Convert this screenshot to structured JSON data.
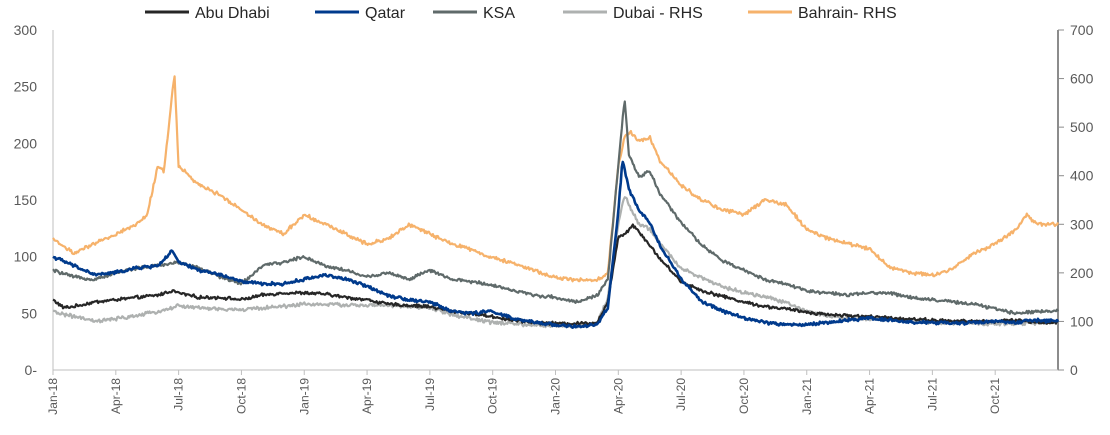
{
  "chart_data": {
    "type": "line",
    "title": "",
    "xlabel": "",
    "ylabel": "",
    "ylim": [
      0,
      300
    ],
    "y2lim": [
      0,
      700
    ],
    "yticks": [
      0,
      50,
      100,
      150,
      200,
      250,
      300
    ],
    "yticks_label_suffix": {
      "0": "-"
    },
    "y2ticks": [
      0,
      100,
      200,
      300,
      400,
      500,
      600,
      700
    ],
    "x_range_months": [
      0,
      48
    ],
    "xtick_labels": [
      "Jan-18",
      "Apr-18",
      "Jul-18",
      "Oct-18",
      "Jan-19",
      "Apr-19",
      "Jul-19",
      "Oct-19",
      "Jan-20",
      "Apr-20",
      "Jul-20",
      "Oct-20",
      "Jan-21",
      "Apr-21",
      "Jul-21",
      "Oct-21"
    ],
    "legend_position": "top",
    "series": [
      {
        "name": "Abu Dhabi",
        "axis": "left",
        "color": "#262626",
        "points": [
          [
            0,
            62
          ],
          [
            0.5,
            55
          ],
          [
            1,
            56
          ],
          [
            2,
            60
          ],
          [
            3,
            62
          ],
          [
            4,
            64
          ],
          [
            5,
            66
          ],
          [
            5.7,
            70
          ],
          [
            6,
            68
          ],
          [
            7,
            64
          ],
          [
            8,
            64
          ],
          [
            9,
            62
          ],
          [
            10,
            66
          ],
          [
            11,
            68
          ],
          [
            12,
            68
          ],
          [
            13,
            67
          ],
          [
            14,
            64
          ],
          [
            15,
            62
          ],
          [
            16,
            58
          ],
          [
            17,
            57
          ],
          [
            18,
            56
          ],
          [
            19,
            52
          ],
          [
            20,
            50
          ],
          [
            21,
            47
          ],
          [
            22,
            44
          ],
          [
            23,
            42
          ],
          [
            24,
            41
          ],
          [
            25,
            41
          ],
          [
            26,
            42
          ],
          [
            26.5,
            60
          ],
          [
            27,
            118
          ],
          [
            27.3,
            120
          ],
          [
            27.7,
            128
          ],
          [
            28,
            122
          ],
          [
            28.5,
            110
          ],
          [
            29,
            98
          ],
          [
            30,
            78
          ],
          [
            31,
            70
          ],
          [
            32,
            65
          ],
          [
            33,
            60
          ],
          [
            34,
            56
          ],
          [
            35,
            54
          ],
          [
            36,
            51
          ],
          [
            37,
            49
          ],
          [
            38,
            48
          ],
          [
            39,
            47
          ],
          [
            40,
            46
          ],
          [
            41,
            45
          ],
          [
            42,
            44
          ],
          [
            43,
            43
          ],
          [
            44,
            43
          ],
          [
            45,
            43
          ],
          [
            46,
            44
          ],
          [
            47,
            42
          ],
          [
            48,
            42
          ]
        ]
      },
      {
        "name": "Qatar",
        "axis": "left",
        "color": "#003a8c",
        "points": [
          [
            0,
            100
          ],
          [
            1,
            92
          ],
          [
            2,
            84
          ],
          [
            3,
            86
          ],
          [
            4,
            90
          ],
          [
            5,
            92
          ],
          [
            5.7,
            105
          ],
          [
            6,
            95
          ],
          [
            7,
            88
          ],
          [
            8,
            84
          ],
          [
            9,
            78
          ],
          [
            10,
            76
          ],
          [
            11,
            76
          ],
          [
            12,
            80
          ],
          [
            13,
            84
          ],
          [
            14,
            80
          ],
          [
            15,
            74
          ],
          [
            16,
            66
          ],
          [
            17,
            62
          ],
          [
            18,
            60
          ],
          [
            18.5,
            56
          ],
          [
            19,
            52
          ],
          [
            20,
            50
          ],
          [
            21,
            52
          ],
          [
            22,
            45
          ],
          [
            23,
            42
          ],
          [
            24,
            40
          ],
          [
            25,
            38
          ],
          [
            26,
            40
          ],
          [
            26.5,
            55
          ],
          [
            27,
            140
          ],
          [
            27.2,
            185
          ],
          [
            27.5,
            160
          ],
          [
            28,
            140
          ],
          [
            28.5,
            130
          ],
          [
            29,
            110
          ],
          [
            30,
            80
          ],
          [
            31,
            60
          ],
          [
            32,
            52
          ],
          [
            33,
            46
          ],
          [
            34,
            42
          ],
          [
            35,
            40
          ],
          [
            36,
            40
          ],
          [
            37,
            42
          ],
          [
            38,
            44
          ],
          [
            39,
            46
          ],
          [
            40,
            44
          ],
          [
            41,
            42
          ],
          [
            42,
            42
          ],
          [
            43,
            41
          ],
          [
            44,
            42
          ],
          [
            45,
            43
          ],
          [
            46,
            42
          ],
          [
            47,
            44
          ],
          [
            48,
            43
          ]
        ]
      },
      {
        "name": "KSA",
        "axis": "left",
        "color": "#5f6a6a",
        "points": [
          [
            0,
            88
          ],
          [
            1,
            82
          ],
          [
            2,
            80
          ],
          [
            3,
            86
          ],
          [
            4,
            90
          ],
          [
            5,
            92
          ],
          [
            6,
            95
          ],
          [
            7,
            90
          ],
          [
            8,
            82
          ],
          [
            9,
            76
          ],
          [
            10,
            92
          ],
          [
            11,
            95
          ],
          [
            12,
            100
          ],
          [
            13,
            92
          ],
          [
            14,
            88
          ],
          [
            15,
            82
          ],
          [
            16,
            86
          ],
          [
            17,
            80
          ],
          [
            18,
            88
          ],
          [
            19,
            80
          ],
          [
            20,
            78
          ],
          [
            21,
            75
          ],
          [
            22,
            70
          ],
          [
            23,
            66
          ],
          [
            24,
            64
          ],
          [
            25,
            60
          ],
          [
            26,
            66
          ],
          [
            26.5,
            80
          ],
          [
            27,
            180
          ],
          [
            27.3,
            240
          ],
          [
            27.5,
            190
          ],
          [
            28,
            170
          ],
          [
            28.5,
            176
          ],
          [
            29,
            155
          ],
          [
            30,
            130
          ],
          [
            31,
            110
          ],
          [
            32,
            96
          ],
          [
            33,
            88
          ],
          [
            34,
            80
          ],
          [
            35,
            76
          ],
          [
            36,
            70
          ],
          [
            37,
            68
          ],
          [
            38,
            66
          ],
          [
            39,
            68
          ],
          [
            40,
            68
          ],
          [
            41,
            64
          ],
          [
            42,
            62
          ],
          [
            43,
            60
          ],
          [
            44,
            58
          ],
          [
            45,
            54
          ],
          [
            46,
            50
          ],
          [
            47,
            52
          ],
          [
            48,
            52
          ]
        ]
      },
      {
        "name": "Dubai - RHS",
        "axis": "right",
        "color": "#aeb1b0",
        "points": [
          [
            0,
            120
          ],
          [
            1,
            110
          ],
          [
            2,
            100
          ],
          [
            3,
            105
          ],
          [
            4,
            112
          ],
          [
            5,
            120
          ],
          [
            6,
            132
          ],
          [
            7,
            128
          ],
          [
            8,
            125
          ],
          [
            9,
            124
          ],
          [
            10,
            128
          ],
          [
            11,
            131
          ],
          [
            12,
            136
          ],
          [
            13,
            135
          ],
          [
            14,
            134
          ],
          [
            15,
            133
          ],
          [
            16,
            133
          ],
          [
            17,
            130
          ],
          [
            18,
            128
          ],
          [
            19,
            115
          ],
          [
            20,
            105
          ],
          [
            21,
            98
          ],
          [
            22,
            95
          ],
          [
            23,
            92
          ],
          [
            24,
            91
          ],
          [
            25,
            90
          ],
          [
            26,
            96
          ],
          [
            26.5,
            150
          ],
          [
            27,
            300
          ],
          [
            27.3,
            360
          ],
          [
            27.6,
            330
          ],
          [
            28,
            300
          ],
          [
            28.5,
            290
          ],
          [
            29,
            260
          ],
          [
            30,
            210
          ],
          [
            31,
            190
          ],
          [
            32,
            170
          ],
          [
            33,
            160
          ],
          [
            34,
            150
          ],
          [
            35,
            140
          ],
          [
            36,
            120
          ],
          [
            37,
            112
          ],
          [
            38,
            106
          ],
          [
            39,
            104
          ],
          [
            40,
            102
          ],
          [
            41,
            100
          ],
          [
            42,
            98
          ],
          [
            43,
            97
          ],
          [
            44,
            96
          ],
          [
            45,
            95
          ],
          [
            46,
            96
          ],
          [
            47,
            97
          ],
          [
            48,
            98
          ]
        ]
      },
      {
        "name": "Bahrain- RHS",
        "axis": "right",
        "color": "#f6b26b",
        "points": [
          [
            0,
            270
          ],
          [
            1,
            240
          ],
          [
            2,
            260
          ],
          [
            3,
            280
          ],
          [
            4,
            300
          ],
          [
            4.5,
            320
          ],
          [
            5,
            420
          ],
          [
            5.3,
            410
          ],
          [
            5.8,
            610
          ],
          [
            6,
            420
          ],
          [
            7,
            380
          ],
          [
            8,
            360
          ],
          [
            9,
            330
          ],
          [
            10,
            300
          ],
          [
            11,
            280
          ],
          [
            12,
            320
          ],
          [
            13,
            300
          ],
          [
            14,
            280
          ],
          [
            15,
            260
          ],
          [
            16,
            270
          ],
          [
            17,
            300
          ],
          [
            18,
            280
          ],
          [
            19,
            260
          ],
          [
            20,
            248
          ],
          [
            21,
            230
          ],
          [
            22,
            220
          ],
          [
            23,
            205
          ],
          [
            24,
            190
          ],
          [
            25,
            185
          ],
          [
            26,
            185
          ],
          [
            26.5,
            200
          ],
          [
            27,
            420
          ],
          [
            27.3,
            480
          ],
          [
            27.6,
            490
          ],
          [
            28,
            470
          ],
          [
            28.5,
            480
          ],
          [
            29,
            430
          ],
          [
            30,
            380
          ],
          [
            31,
            350
          ],
          [
            32,
            330
          ],
          [
            33,
            320
          ],
          [
            34,
            350
          ],
          [
            35,
            340
          ],
          [
            36,
            290
          ],
          [
            37,
            270
          ],
          [
            38,
            260
          ],
          [
            39,
            250
          ],
          [
            40,
            210
          ],
          [
            41,
            200
          ],
          [
            42,
            195
          ],
          [
            43,
            210
          ],
          [
            44,
            240
          ],
          [
            45,
            260
          ],
          [
            46,
            290
          ],
          [
            46.5,
            320
          ],
          [
            47,
            300
          ],
          [
            48,
            300
          ]
        ]
      }
    ]
  }
}
